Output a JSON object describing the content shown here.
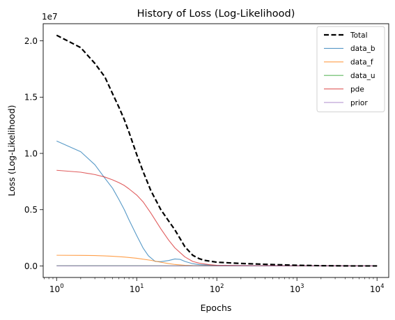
{
  "chart_data": {
    "type": "line",
    "title": "History of Loss (Log-Likelihood)",
    "xlabel": "Epochs",
    "ylabel": "Loss (Log-Likelihood)",
    "xscale": "log",
    "xlim": [
      0.68,
      14000
    ],
    "ylim": [
      -1025000,
      21525000
    ],
    "y_offset_label": "1e7",
    "x_ticks": [
      {
        "value": 1,
        "base": "10",
        "exp": "0"
      },
      {
        "value": 10,
        "base": "10",
        "exp": "1"
      },
      {
        "value": 100,
        "base": "10",
        "exp": "2"
      },
      {
        "value": 1000,
        "base": "10",
        "exp": "3"
      },
      {
        "value": 10000,
        "base": "10",
        "exp": "4"
      }
    ],
    "y_ticks": [
      {
        "value": 0,
        "label": "0.0"
      },
      {
        "value": 5000000,
        "label": "0.5"
      },
      {
        "value": 10000000,
        "label": "1.0"
      },
      {
        "value": 15000000,
        "label": "1.5"
      },
      {
        "value": 20000000,
        "label": "2.0"
      }
    ],
    "legend_position": "top-right",
    "series": [
      {
        "name": "Total",
        "color": "#000000",
        "dashed": true,
        "x": [
          1,
          2,
          3,
          4,
          5,
          6,
          7,
          8,
          10,
          12,
          15,
          20,
          25,
          30,
          35,
          40,
          50,
          60,
          70,
          100,
          200,
          500,
          1000,
          2000,
          5000,
          10000
        ],
        "y": [
          20500000,
          19400000,
          18000000,
          16800000,
          15300000,
          14100000,
          13000000,
          11900000,
          9900000,
          8400000,
          6700000,
          5000000,
          4000000,
          3200000,
          2400000,
          1700000,
          950000,
          650000,
          500000,
          330000,
          220000,
          120000,
          60000,
          20000,
          0,
          0
        ]
      },
      {
        "name": "data_b",
        "color": "#1f77b4",
        "x": [
          1,
          2,
          3,
          4,
          5,
          6,
          7,
          8,
          10,
          12,
          14,
          17,
          20,
          25,
          30,
          35,
          40,
          50,
          60,
          80,
          100,
          200,
          1000,
          10000
        ],
        "y": [
          11100000,
          10150000,
          9000000,
          7800000,
          6900000,
          5900000,
          5000000,
          4100000,
          2700000,
          1600000,
          900000,
          400000,
          380000,
          480000,
          620000,
          580000,
          400000,
          200000,
          120000,
          80000,
          50000,
          30000,
          10000,
          0
        ]
      },
      {
        "name": "data_f",
        "color": "#ff7f0e",
        "x": [
          1,
          2,
          3,
          4,
          5,
          7,
          10,
          15,
          20,
          25,
          30,
          40,
          50,
          100,
          1000,
          10000
        ],
        "y": [
          950000,
          940000,
          920000,
          890000,
          860000,
          790000,
          680000,
          500000,
          330000,
          210000,
          130000,
          60000,
          30000,
          10000,
          0,
          0
        ]
      },
      {
        "name": "data_u",
        "color": "#2ca02c",
        "x": [
          1,
          10,
          100,
          1000,
          10000
        ],
        "y": [
          20000,
          15000,
          10000,
          5000,
          0
        ]
      },
      {
        "name": "pde",
        "color": "#d62728",
        "x": [
          1,
          2,
          3,
          4,
          5,
          6,
          7,
          8,
          10,
          12,
          15,
          20,
          25,
          30,
          40,
          50,
          60,
          80,
          100,
          200,
          1000,
          10000
        ],
        "y": [
          8500000,
          8330000,
          8120000,
          7900000,
          7650000,
          7400000,
          7150000,
          6850000,
          6300000,
          5700000,
          4700000,
          3300000,
          2300000,
          1600000,
          800000,
          400000,
          250000,
          120000,
          60000,
          30000,
          10000,
          0
        ]
      },
      {
        "name": "prior",
        "color": "#9467bd",
        "x": [
          1,
          10,
          100,
          1000,
          10000
        ],
        "y": [
          10000,
          10000,
          10000,
          10000,
          10000
        ]
      }
    ]
  }
}
